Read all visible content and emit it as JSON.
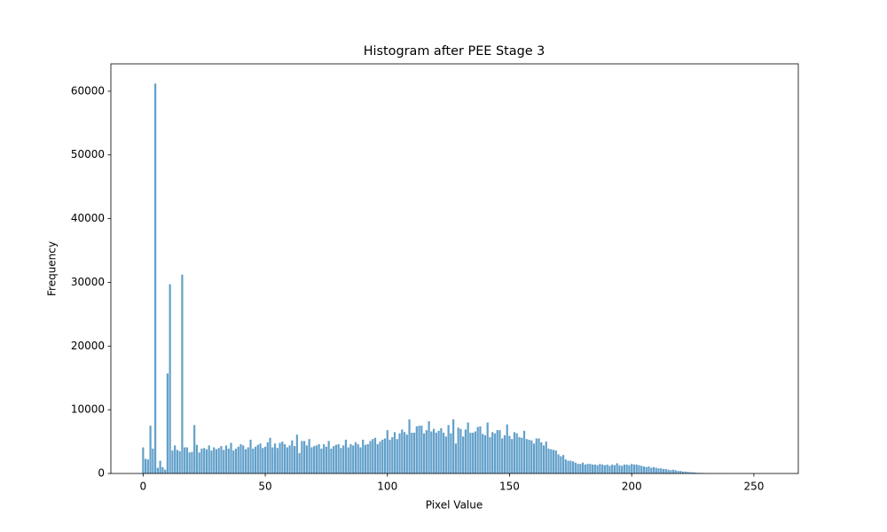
{
  "chart_data": {
    "type": "bar",
    "title": "Histogram after PEE Stage 3",
    "x_label": "Pixel Value",
    "y_label": "Frequency",
    "color": "#1f77b4",
    "opacity": 0.7,
    "bar_width": 0.8,
    "x": [
      0,
      1,
      2,
      3,
      4,
      5,
      6,
      7,
      8,
      9,
      10,
      11,
      12,
      13,
      14,
      15,
      16,
      17,
      18,
      19,
      20,
      21,
      22,
      23,
      24,
      25,
      26,
      27,
      28,
      29,
      30,
      31,
      32,
      33,
      34,
      35,
      36,
      37,
      38,
      39,
      40,
      41,
      42,
      43,
      44,
      45,
      46,
      47,
      48,
      49,
      50,
      51,
      52,
      53,
      54,
      55,
      56,
      57,
      58,
      59,
      60,
      61,
      62,
      63,
      64,
      65,
      66,
      67,
      68,
      69,
      70,
      71,
      72,
      73,
      74,
      75,
      76,
      77,
      78,
      79,
      80,
      81,
      82,
      83,
      84,
      85,
      86,
      87,
      88,
      89,
      90,
      91,
      92,
      93,
      94,
      95,
      96,
      97,
      98,
      99,
      100,
      101,
      102,
      103,
      104,
      105,
      106,
      107,
      108,
      109,
      110,
      111,
      112,
      113,
      114,
      115,
      116,
      117,
      118,
      119,
      120,
      121,
      122,
      123,
      124,
      125,
      126,
      127,
      128,
      129,
      130,
      131,
      132,
      133,
      134,
      135,
      136,
      137,
      138,
      139,
      140,
      141,
      142,
      143,
      144,
      145,
      146,
      147,
      148,
      149,
      150,
      151,
      152,
      153,
      154,
      155,
      156,
      157,
      158,
      159,
      160,
      161,
      162,
      163,
      164,
      165,
      166,
      167,
      168,
      169,
      170,
      171,
      172,
      173,
      174,
      175,
      176,
      177,
      178,
      179,
      180,
      181,
      182,
      183,
      184,
      185,
      186,
      187,
      188,
      189,
      190,
      191,
      192,
      193,
      194,
      195,
      196,
      197,
      198,
      199,
      200,
      201,
      202,
      203,
      204,
      205,
      206,
      207,
      208,
      209,
      210,
      211,
      212,
      213,
      214,
      215,
      216,
      217,
      218,
      219,
      220,
      221,
      222,
      223,
      224,
      225,
      226,
      227,
      228,
      229,
      230,
      231,
      232,
      233,
      234,
      235,
      236,
      237,
      238,
      239,
      240,
      241,
      242,
      243,
      244,
      245,
      246,
      247,
      248,
      249,
      250,
      251,
      252,
      253,
      254,
      255
    ],
    "values": [
      4100,
      2300,
      2200,
      7500,
      3900,
      61200,
      900,
      2000,
      1000,
      600,
      15700,
      29700,
      3600,
      4400,
      3700,
      3500,
      31200,
      4100,
      4100,
      3300,
      3400,
      7600,
      4500,
      3300,
      3900,
      4000,
      3800,
      4400,
      3600,
      4100,
      3800,
      4000,
      4300,
      3700,
      4400,
      3900,
      4800,
      3600,
      3900,
      4200,
      4600,
      4400,
      3800,
      4100,
      5300,
      3900,
      4200,
      4500,
      4700,
      4000,
      4200,
      4900,
      5600,
      4100,
      4700,
      4000,
      4800,
      5000,
      4600,
      4100,
      4400,
      5200,
      4300,
      6100,
      3200,
      5100,
      5100,
      4400,
      5400,
      4100,
      4300,
      4400,
      4600,
      3900,
      4600,
      4200,
      5100,
      3900,
      4300,
      4500,
      4600,
      4000,
      4400,
      5300,
      4100,
      4600,
      4400,
      4900,
      4600,
      4100,
      5300,
      4500,
      4600,
      5100,
      5400,
      5600,
      4600,
      5000,
      5300,
      5500,
      6800,
      5300,
      5700,
      6500,
      5400,
      6300,
      6900,
      6500,
      6100,
      8500,
      6400,
      6400,
      7400,
      7500,
      7500,
      6300,
      6800,
      8200,
      6600,
      7000,
      6400,
      6700,
      7100,
      6400,
      5800,
      7600,
      6300,
      8500,
      4700,
      7200,
      7000,
      5800,
      6900,
      8000,
      6400,
      6400,
      6600,
      7300,
      7400,
      6200,
      6000,
      8000,
      5700,
      6500,
      6300,
      6800,
      6800,
      5500,
      6000,
      7700,
      5900,
      5400,
      6500,
      6300,
      5700,
      5600,
      6700,
      5400,
      5300,
      5200,
      4700,
      5500,
      5500,
      4900,
      4400,
      5000,
      3900,
      3800,
      3700,
      3600,
      3000,
      2700,
      2900,
      2200,
      2000,
      2000,
      1900,
      1700,
      1500,
      1500,
      1700,
      1400,
      1500,
      1500,
      1400,
      1400,
      1300,
      1500,
      1400,
      1300,
      1400,
      1200,
      1400,
      1300,
      1600,
      1300,
      1200,
      1400,
      1400,
      1300,
      1500,
      1400,
      1400,
      1300,
      1200,
      1100,
      1000,
      1100,
      900,
      1000,
      900,
      800,
      800,
      700,
      700,
      600,
      500,
      600,
      500,
      400,
      400,
      300,
      300,
      250,
      200,
      200,
      150,
      100,
      100,
      80,
      60,
      40,
      30,
      30,
      20,
      20,
      10,
      10,
      10,
      5,
      5,
      5,
      0,
      0,
      0,
      0,
      0,
      0,
      0,
      0,
      0,
      0,
      0,
      0,
      0,
      0
    ],
    "xlim": [
      -13.19,
      268.19
    ],
    "ylim": [
      0,
      64300
    ],
    "xticks": [
      0,
      50,
      100,
      150,
      200,
      250
    ],
    "yticks": [
      0,
      10000,
      20000,
      30000,
      40000,
      50000,
      60000
    ]
  }
}
